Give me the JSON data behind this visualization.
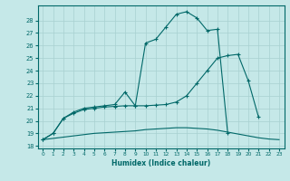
{
  "xlabel": "Humidex (Indice chaleur)",
  "bg_color": "#c5e8e8",
  "grid_color": "#a8d0d0",
  "line_color": "#006868",
  "xlim": [
    -0.5,
    23.5
  ],
  "ylim": [
    17.8,
    29.2
  ],
  "xticks": [
    0,
    1,
    2,
    3,
    4,
    5,
    6,
    7,
    8,
    9,
    10,
    11,
    12,
    13,
    14,
    15,
    16,
    17,
    18,
    19,
    20,
    21,
    22,
    23
  ],
  "yticks": [
    18,
    19,
    20,
    21,
    22,
    23,
    24,
    25,
    26,
    27,
    28
  ],
  "line1_x": [
    0,
    1,
    2,
    3,
    4,
    5,
    6,
    7,
    8,
    9,
    10,
    11,
    12,
    13,
    14,
    15,
    16,
    17,
    18
  ],
  "line1_y": [
    18.5,
    19.0,
    20.2,
    20.7,
    21.0,
    21.1,
    21.2,
    21.3,
    22.3,
    21.2,
    26.2,
    26.5,
    27.5,
    28.5,
    28.7,
    28.2,
    27.2,
    27.3,
    19.0
  ],
  "line2_x": [
    0,
    1,
    2,
    3,
    4,
    5,
    6,
    7,
    8,
    9,
    10,
    11,
    12,
    13,
    14,
    15,
    16,
    17,
    18,
    19,
    20,
    21
  ],
  "line2_y": [
    18.5,
    19.0,
    20.2,
    20.6,
    20.9,
    21.0,
    21.1,
    21.15,
    21.2,
    21.2,
    21.2,
    21.25,
    21.3,
    21.5,
    22.0,
    23.0,
    24.0,
    25.0,
    25.2,
    25.3,
    23.2,
    20.3
  ],
  "line3_x": [
    0,
    1,
    2,
    3,
    4,
    5,
    6,
    7,
    8,
    9,
    10,
    11,
    12,
    13,
    14,
    15,
    16,
    17,
    18,
    19,
    20,
    21,
    22,
    23
  ],
  "line3_y": [
    18.5,
    18.6,
    18.7,
    18.8,
    18.9,
    19.0,
    19.05,
    19.1,
    19.15,
    19.2,
    19.3,
    19.35,
    19.4,
    19.45,
    19.45,
    19.4,
    19.35,
    19.25,
    19.1,
    18.95,
    18.8,
    18.65,
    18.55,
    18.5
  ]
}
